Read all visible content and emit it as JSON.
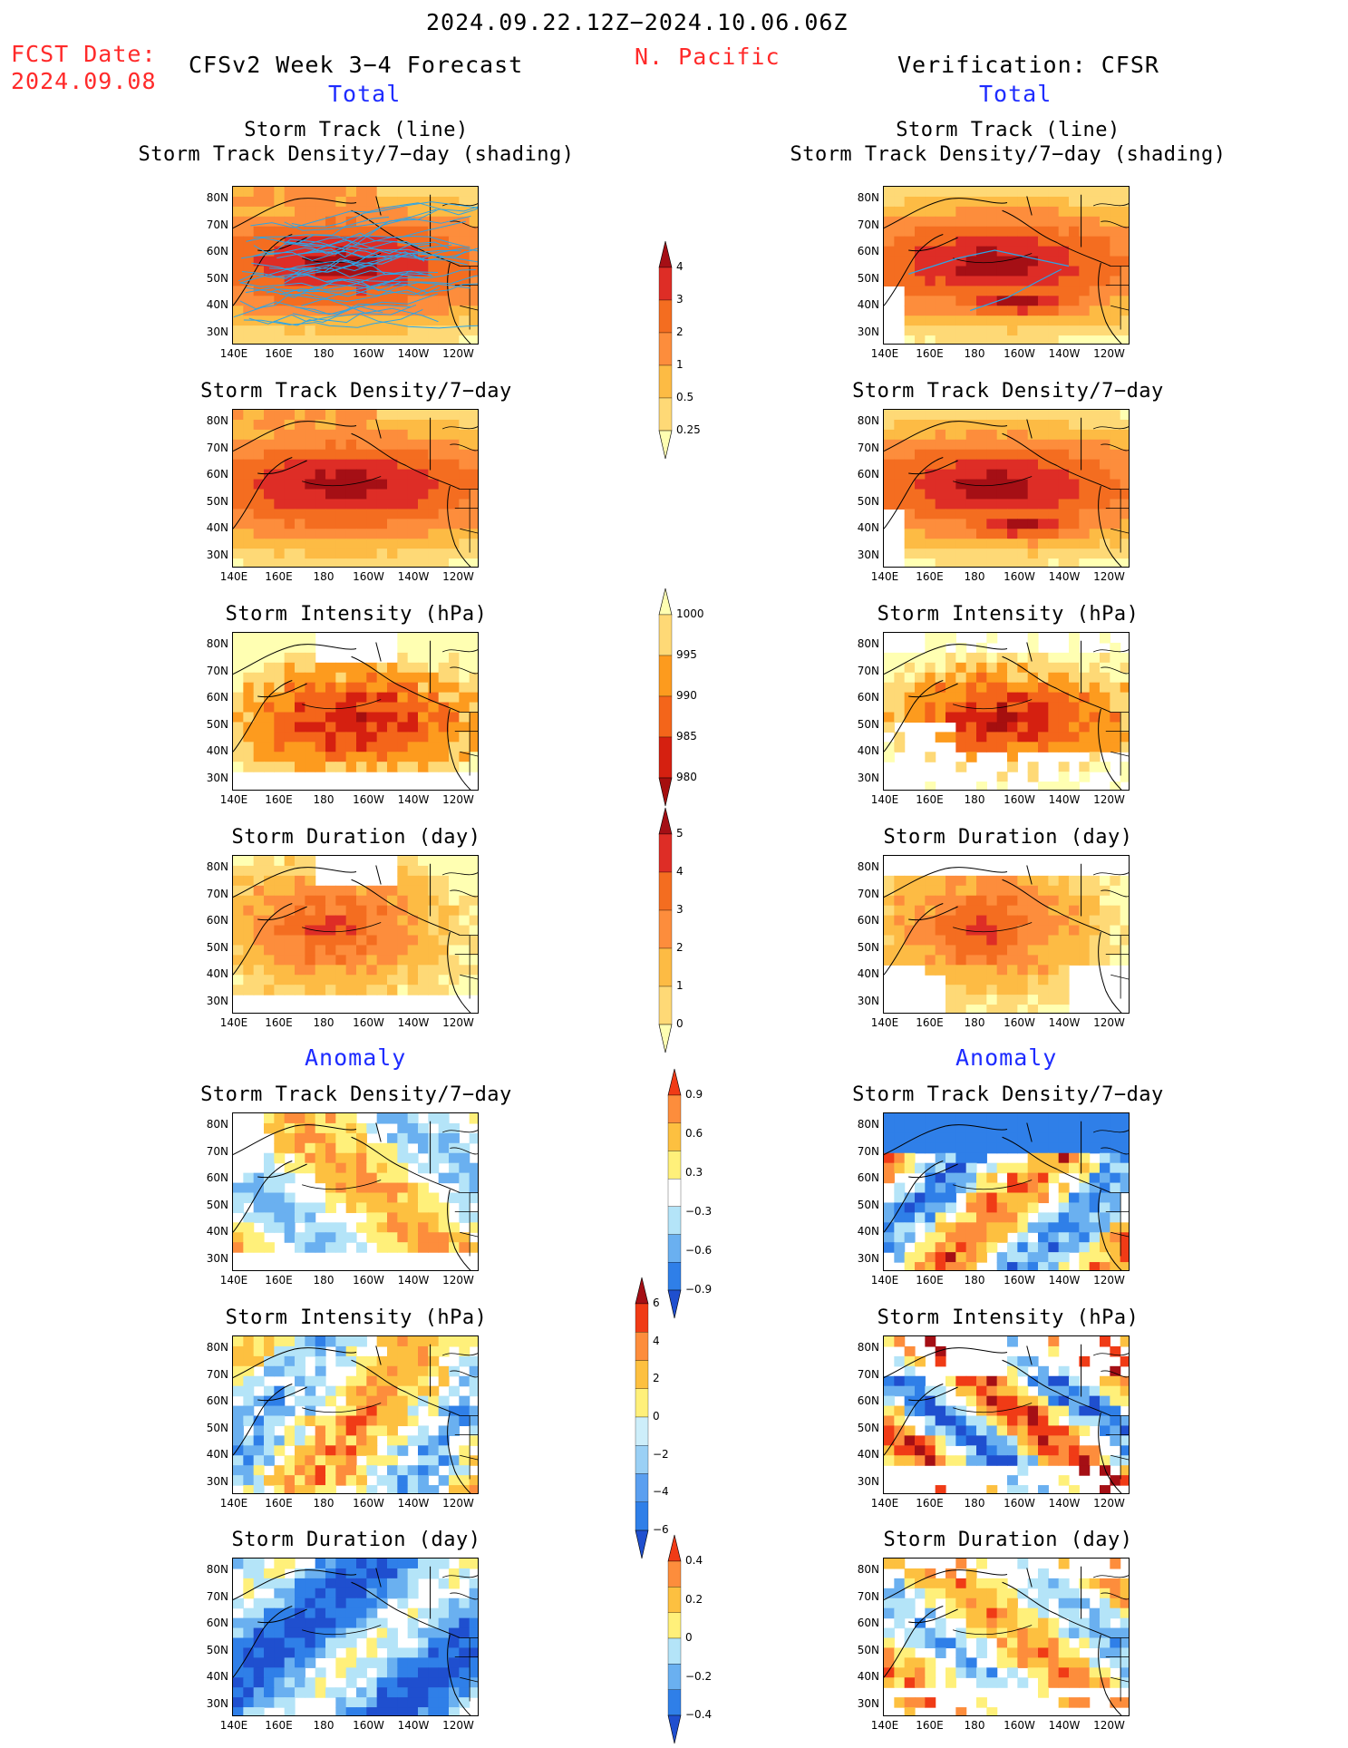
{
  "header": {
    "period": "2024.09.22.12Z−2024.10.06.06Z",
    "fcst_label": "FCST Date:",
    "fcst_date": "2024.09.08",
    "model_title": "CFSv2 Week 3−4 Forecast",
    "region": "N. Pacific",
    "verification": "Verification: CFSR"
  },
  "section_labels": {
    "total": "Total",
    "anomaly": "Anomaly"
  },
  "map_axes": {
    "lat_ticks": [
      "80N",
      "70N",
      "60N",
      "50N",
      "40N",
      "30N"
    ],
    "lon_ticks": [
      "140E",
      "160E",
      "180",
      "160W",
      "140W",
      "120W"
    ]
  },
  "panels": [
    {
      "id": "p1",
      "col": "left",
      "title_lines": [
        "Storm Track (line)",
        "Storm Track Density/7−day (shading)"
      ],
      "field": "density",
      "tracks": true
    },
    {
      "id": "p2",
      "col": "left",
      "title_lines": [
        "Storm Track Density/7−day"
      ],
      "field": "density"
    },
    {
      "id": "p3",
      "col": "left",
      "title_lines": [
        "Storm Intensity (hPa)"
      ],
      "field": "intensity"
    },
    {
      "id": "p4",
      "col": "left",
      "title_lines": [
        "Storm Duration (day)"
      ],
      "field": "duration"
    },
    {
      "id": "p5",
      "col": "left",
      "title_lines": [
        "Storm Track Density/7−day"
      ],
      "field": "anom_density"
    },
    {
      "id": "p6",
      "col": "left",
      "title_lines": [
        "Storm Intensity (hPa)"
      ],
      "field": "anom_intensity"
    },
    {
      "id": "p7",
      "col": "left",
      "title_lines": [
        "Storm Duration (day)"
      ],
      "field": "anom_duration"
    },
    {
      "id": "q1",
      "col": "right",
      "title_lines": [
        "Storm Track (line)",
        "Storm Track Density/7−day (shading)"
      ],
      "field": "density",
      "tracks": true
    },
    {
      "id": "q2",
      "col": "right",
      "title_lines": [
        "Storm Track Density/7−day"
      ],
      "field": "density"
    },
    {
      "id": "q3",
      "col": "right",
      "title_lines": [
        "Storm Intensity (hPa)"
      ],
      "field": "intensity"
    },
    {
      "id": "q4",
      "col": "right",
      "title_lines": [
        "Storm Duration (day)"
      ],
      "field": "duration"
    },
    {
      "id": "q5",
      "col": "right",
      "title_lines": [
        "Storm Track Density/7−day"
      ],
      "field": "anom_density"
    },
    {
      "id": "q6",
      "col": "right",
      "title_lines": [
        "Storm Intensity (hPa)"
      ],
      "field": "anom_intensity"
    },
    {
      "id": "q7",
      "col": "right",
      "title_lines": [
        "Storm Duration (day)"
      ],
      "field": "anom_duration"
    }
  ],
  "colorbars": [
    {
      "id": "cb_density",
      "labels": [
        "4",
        "3",
        "2",
        "1",
        "0.5",
        "0.25"
      ],
      "colors": [
        "#a50f15",
        "#de2d26",
        "#f46d20",
        "#fd8d3c",
        "#fdbb44",
        "#fed976",
        "#ffffb2"
      ]
    },
    {
      "id": "cb_intensity",
      "labels": [
        "1000",
        "995",
        "990",
        "985",
        "980"
      ],
      "colors": [
        "#ffffb2",
        "#fed976",
        "#fd9b1e",
        "#f4651a",
        "#d52010",
        "#a50f0f"
      ]
    },
    {
      "id": "cb_duration",
      "labels": [
        "5",
        "4",
        "3",
        "2",
        "1",
        "0"
      ],
      "colors": [
        "#a50f15",
        "#de2d26",
        "#f46d20",
        "#fd8d3c",
        "#fdbb44",
        "#fed976",
        "#ffffb2"
      ]
    },
    {
      "id": "cb_anom_density",
      "labels": [
        "0.9",
        "0.6",
        "0.3",
        "−0.3",
        "−0.6",
        "−0.9"
      ],
      "colors": [
        "#f03b16",
        "#fd8d3c",
        "#fdc040",
        "#fff07a",
        "#ffffff",
        "#b4e4f8",
        "#6ab0f0",
        "#2f7fe8",
        "#1f4fcf"
      ]
    },
    {
      "id": "cb_anom_intensity",
      "labels": [
        "6",
        "4",
        "2",
        "0",
        "−2",
        "−4",
        "−6"
      ],
      "colors": [
        "#a50f15",
        "#f03b16",
        "#fd8d3c",
        "#fdc040",
        "#fff07a",
        "#cdeefa",
        "#9ad0f5",
        "#5a9ff0",
        "#2f7fe8",
        "#1f4fcf"
      ]
    },
    {
      "id": "cb_anom_duration",
      "labels": [
        "0.4",
        "0.2",
        "0",
        "−0.2",
        "−0.4"
      ],
      "colors": [
        "#f03b16",
        "#fd8d3c",
        "#fdc040",
        "#fff07a",
        "#b4e4f8",
        "#6ab0f0",
        "#2f7fe8",
        "#1f4fcf"
      ]
    }
  ],
  "chart_data": {
    "type": "heatmap",
    "title": "2024.09.22.12Z−2024.10.06.06Z",
    "region": "N. Pacific",
    "x_ticks": [
      "140E",
      "160E",
      "180",
      "160W",
      "140W",
      "120W"
    ],
    "y_ticks": [
      "80N",
      "70N",
      "60N",
      "50N",
      "40N",
      "30N"
    ],
    "colorbar_levels": {
      "density": [
        0.25,
        0.5,
        1,
        2,
        3,
        4
      ],
      "intensity": [
        1000,
        995,
        990,
        985,
        980
      ],
      "duration": [
        0,
        1,
        2,
        3,
        4,
        5
      ],
      "anom_density": [
        -0.9,
        -0.6,
        -0.3,
        0.3,
        0.6,
        0.9
      ],
      "anom_intensity": [
        -6,
        -4,
        -2,
        0,
        2,
        4,
        6
      ],
      "anom_duration": [
        -0.4,
        -0.2,
        0,
        0.2,
        0.4
      ]
    }
  }
}
